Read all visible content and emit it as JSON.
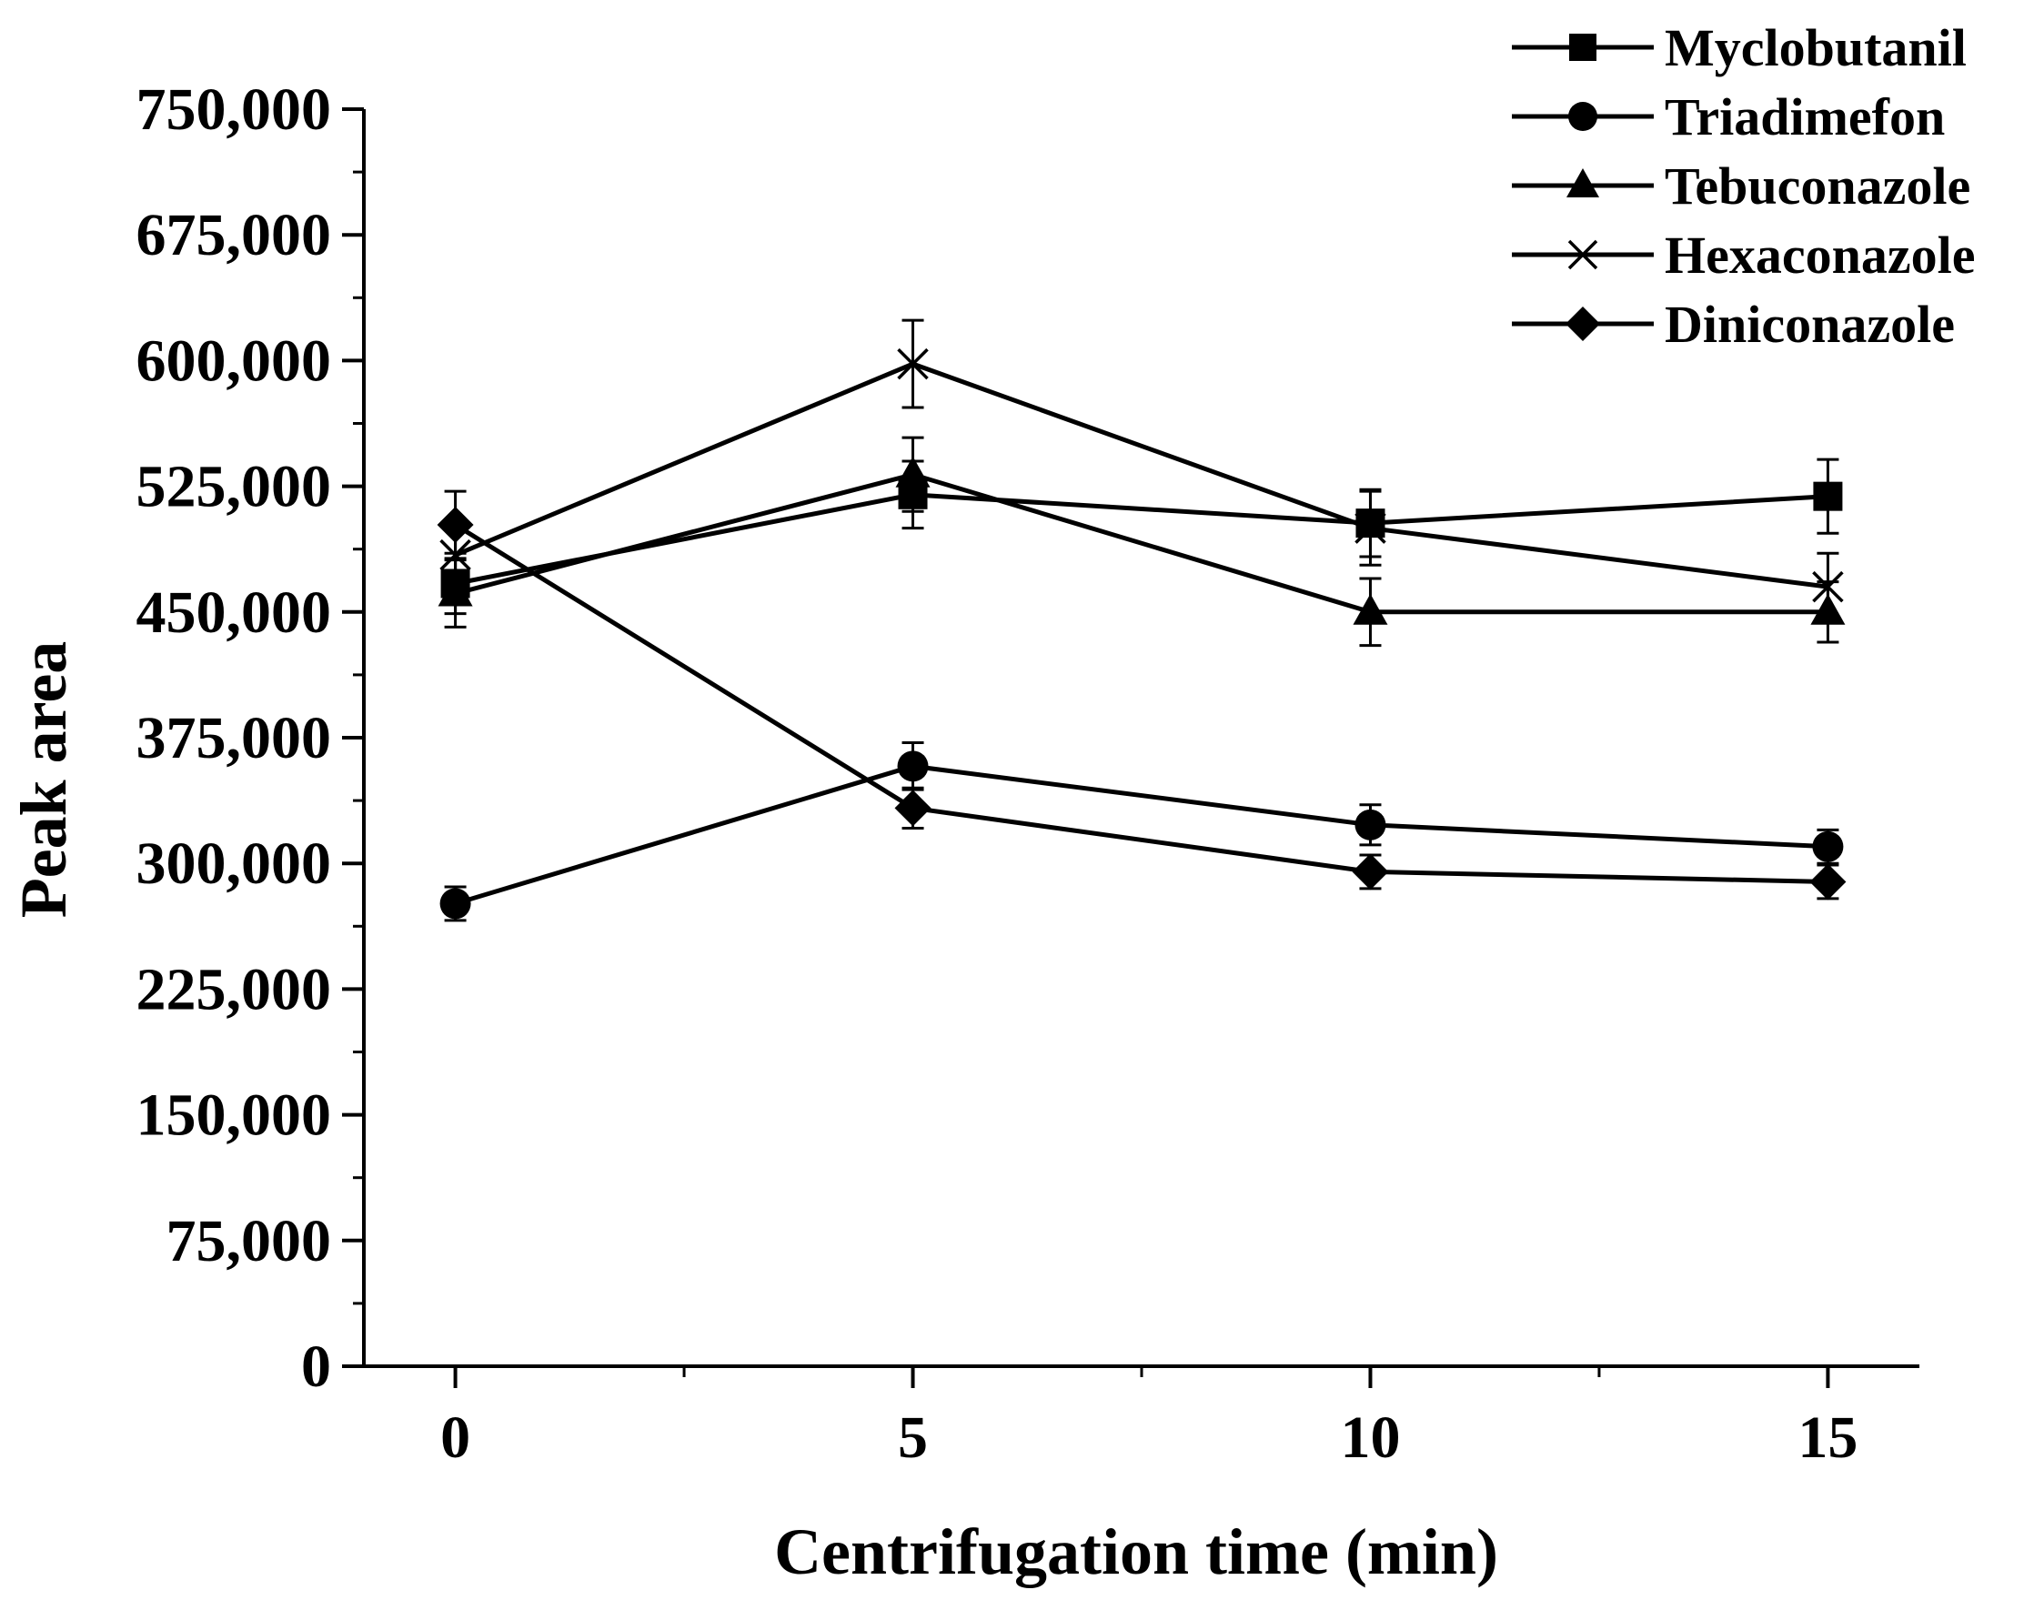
{
  "chart_data": {
    "type": "line",
    "title": "",
    "xlabel": "Centrifugation time (min)",
    "ylabel": "Peak area",
    "x": [
      0,
      5,
      10,
      15
    ],
    "xlim": [
      -1,
      16
    ],
    "ylim": [
      0,
      750000
    ],
    "xticks": [
      0,
      5,
      10,
      15
    ],
    "xtick_labels": [
      "0",
      "5",
      "10",
      "15"
    ],
    "yticks": [
      0,
      75000,
      150000,
      225000,
      300000,
      375000,
      450000,
      525000,
      600000,
      675000,
      750000
    ],
    "ytick_labels": [
      "0",
      "75,000",
      "150,000",
      "225,000",
      "300,000",
      "375,000",
      "450,000",
      "525,000",
      "600,000",
      "675,000",
      "750,000"
    ],
    "legend_position": "top-right",
    "grid": false,
    "series": [
      {
        "name": "Myclobutanil",
        "marker": "square",
        "values": [
          467000,
          520000,
          503000,
          519000
        ],
        "errors": [
          18000,
          20000,
          20000,
          22000
        ]
      },
      {
        "name": "Triadimefon",
        "marker": "circle",
        "values": [
          276000,
          358000,
          323000,
          310000
        ],
        "errors": [
          10000,
          14000,
          12000,
          10000
        ]
      },
      {
        "name": "Tebuconazole",
        "marker": "triangle",
        "values": [
          461000,
          532000,
          450000,
          450000
        ],
        "errors": [
          20000,
          22000,
          20000,
          18000
        ]
      },
      {
        "name": "Hexaconazole",
        "marker": "x",
        "values": [
          484000,
          598000,
          500000,
          465000
        ],
        "errors": [
          16000,
          26000,
          22000,
          20000
        ]
      },
      {
        "name": "Diniconazole",
        "marker": "diamond",
        "values": [
          502000,
          333000,
          295000,
          289000
        ],
        "errors": [
          20000,
          12000,
          10000,
          10000
        ]
      }
    ]
  }
}
